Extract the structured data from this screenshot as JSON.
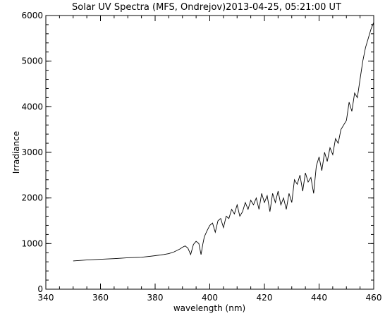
{
  "chart_data": {
    "type": "line",
    "title": "Solar UV Spectra (MFS, Ondrejov)2013-04-25, 05:21:00 UT",
    "xlabel": "wavelength (nm)",
    "ylabel": "Irradiance",
    "xlim": [
      340,
      460
    ],
    "ylim": [
      0,
      6000
    ],
    "x_ticks": [
      340,
      360,
      380,
      400,
      420,
      440,
      460
    ],
    "x_tick_labels": [
      "340",
      "360",
      "380",
      "400",
      "420",
      "440",
      "460"
    ],
    "y_ticks": [
      0,
      1000,
      2000,
      3000,
      4000,
      5000,
      6000
    ],
    "y_tick_labels": [
      "0",
      "1000",
      "2000",
      "3000",
      "4000",
      "5000",
      "6000"
    ],
    "grid": false,
    "line_color": "#000000",
    "series": [
      {
        "x": [
          350,
          355,
          360,
          365,
          370,
          375,
          378,
          380,
          383,
          385,
          387,
          389,
          390,
          391,
          392,
          393,
          394,
          395,
          396,
          396.8,
          397.5,
          398,
          399,
          400,
          401,
          402,
          403,
          404,
          405,
          406,
          407,
          408,
          409,
          410,
          411,
          412,
          413,
          414,
          415,
          416,
          417,
          418,
          419,
          420,
          421,
          422,
          423,
          424,
          425,
          426,
          427,
          428,
          429,
          430,
          431,
          432,
          433,
          434,
          435,
          436,
          437,
          438,
          439,
          440,
          441,
          442,
          443,
          444,
          445,
          446,
          447,
          448,
          449,
          450,
          451,
          452,
          453,
          454,
          455,
          456,
          457,
          458,
          459,
          460
        ],
        "y": [
          620,
          640,
          655,
          670,
          690,
          700,
          720,
          735,
          760,
          780,
          820,
          880,
          920,
          950,
          900,
          760,
          980,
          1050,
          1000,
          760,
          1000,
          1150,
          1280,
          1400,
          1450,
          1250,
          1500,
          1550,
          1350,
          1600,
          1550,
          1750,
          1650,
          1850,
          1600,
          1700,
          1900,
          1750,
          1950,
          1850,
          2000,
          1750,
          2100,
          1900,
          2050,
          1700,
          2100,
          1900,
          2150,
          1850,
          2000,
          1750,
          2100,
          1900,
          2400,
          2300,
          2500,
          2150,
          2550,
          2350,
          2450,
          2100,
          2700,
          2900,
          2600,
          3000,
          2800,
          3100,
          2950,
          3300,
          3200,
          3500,
          3600,
          3700,
          4100,
          3900,
          4300,
          4200,
          4600,
          5000,
          5300,
          5500,
          5700,
          5850
        ]
      }
    ]
  }
}
